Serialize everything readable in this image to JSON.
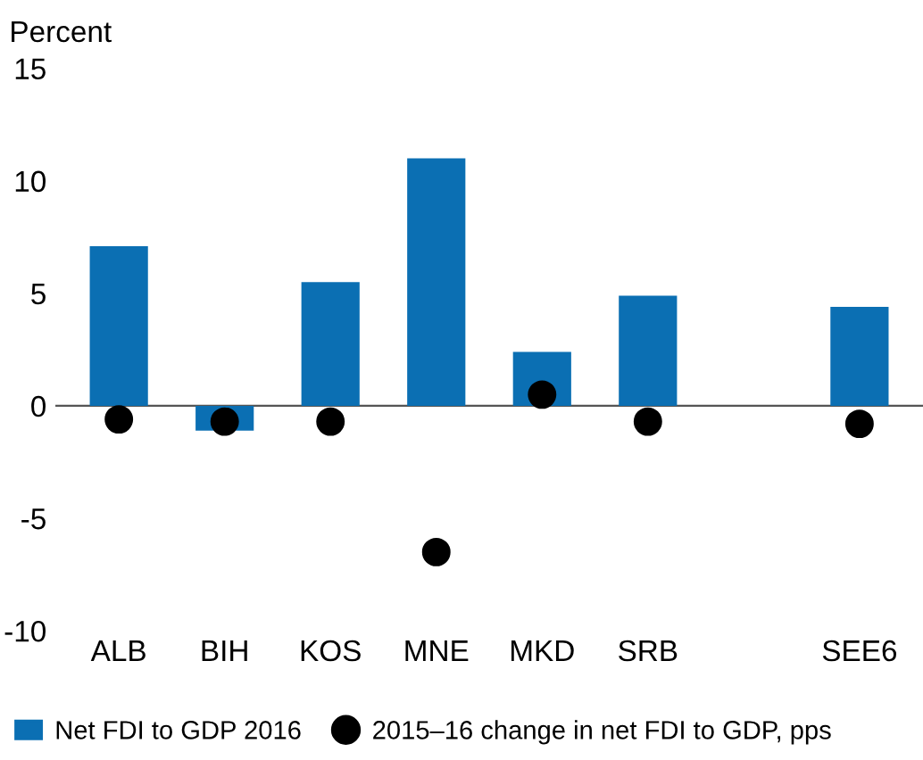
{
  "chart_data": {
    "type": "bar",
    "ylabel": "Percent",
    "categories": [
      "ALB",
      "BIH",
      "KOS",
      "MNE",
      "MKD",
      "SRB",
      null,
      "SEE6"
    ],
    "series": [
      {
        "name": "Net FDI to GDP 2016",
        "color": "#0b6fb3",
        "values": [
          7.1,
          -1.1,
          5.5,
          11.0,
          2.4,
          4.9,
          null,
          4.4
        ]
      },
      {
        "name": "2015–16 change in net FDI to GDP, pps",
        "type": "scatter",
        "color": "#000000",
        "marker": "circle",
        "values": [
          -0.6,
          -0.7,
          -0.7,
          -6.5,
          0.5,
          -0.7,
          null,
          -0.8
        ]
      }
    ],
    "ylim": [
      -10,
      15
    ],
    "yticks": [
      -10,
      -5,
      0,
      5,
      10,
      15
    ],
    "legend": "bottom"
  }
}
